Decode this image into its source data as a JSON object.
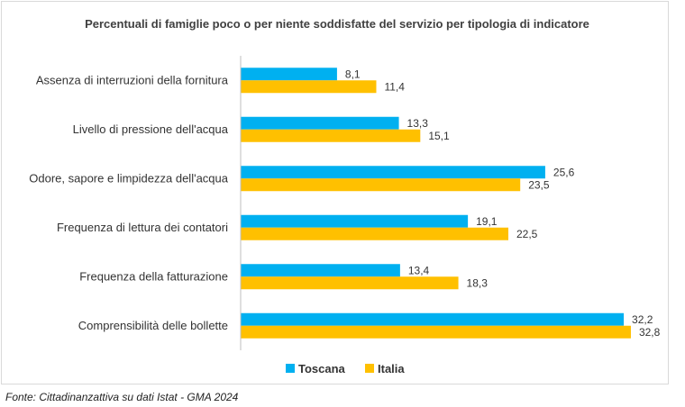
{
  "chart_data": {
    "type": "bar",
    "orientation": "horizontal",
    "title": "Percentuali di famiglie poco o per niente soddisfatte del servizio per tipologia di indicatore",
    "categories": [
      "Assenza di interruzioni della fornitura",
      "Livello di pressione dell'acqua",
      "Odore, sapore e limpidezza dell'acqua",
      "Frequenza di lettura dei contatori",
      "Frequenza della fatturazione",
      "Comprensibilità delle bollette"
    ],
    "series": [
      {
        "name": "Toscana",
        "color": "#00b0f0",
        "values": [
          8.1,
          13.3,
          25.6,
          19.1,
          13.4,
          32.2
        ],
        "labels": [
          "8,1",
          "13,3",
          "25,6",
          "19,1",
          "13,4",
          "32,2"
        ]
      },
      {
        "name": "Italia",
        "color": "#ffc000",
        "values": [
          11.4,
          15.1,
          23.5,
          22.5,
          18.3,
          32.8
        ],
        "labels": [
          "11,4",
          "15,1",
          "23,5",
          "22,5",
          "18,3",
          "32,8"
        ]
      }
    ],
    "xlim": [
      0,
      35
    ],
    "grid": false,
    "legend_position": "bottom"
  },
  "source_note": "Fonte: Cittadinanzattiva su dati Istat - GMA 2024"
}
